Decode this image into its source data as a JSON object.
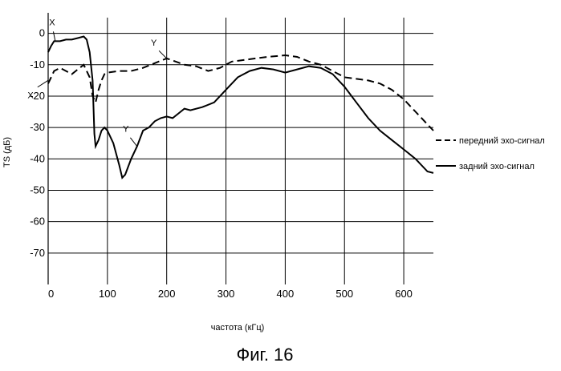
{
  "chart_data": {
    "type": "line",
    "title": "",
    "caption": "Фиг. 16",
    "xlabel": "частота (кГц)",
    "ylabel": "TS (дБ)",
    "xlim": [
      0,
      650
    ],
    "ylim": [
      -80,
      5
    ],
    "grid": true,
    "x_ticks": [
      0,
      100,
      200,
      300,
      400,
      500,
      600
    ],
    "y_ticks": [
      0,
      -10,
      -20,
      -30,
      -40,
      -50,
      -60,
      -70
    ],
    "x_tick_labels": [
      "0",
      "100",
      "200",
      "300",
      "400",
      "500",
      "600"
    ],
    "y_tick_labels": [
      "0",
      "-10",
      "-20",
      "-30",
      "-40",
      "-50",
      "-60",
      "-70"
    ],
    "legend": "right",
    "series": [
      {
        "name": "передний эхо-сигнал",
        "style": "dashed",
        "x": [
          0,
          10,
          20,
          30,
          40,
          50,
          60,
          70,
          75,
          80,
          85,
          90,
          95,
          100,
          120,
          140,
          160,
          180,
          200,
          215,
          230,
          250,
          270,
          290,
          310,
          330,
          350,
          370,
          400,
          420,
          440,
          460,
          480,
          500,
          520,
          540,
          560,
          580,
          600,
          620,
          650
        ],
        "y": [
          -16,
          -12,
          -11,
          -12,
          -13,
          -11.5,
          -10,
          -14,
          -20,
          -22,
          -18,
          -15,
          -13,
          -12.5,
          -12,
          -12,
          -11,
          -9.5,
          -8,
          -9,
          -10,
          -10.5,
          -12,
          -11,
          -9,
          -8.5,
          -8,
          -7.5,
          -7,
          -7.5,
          -9,
          -10,
          -12,
          -14,
          -14.5,
          -15,
          -16,
          -18,
          -21,
          -25,
          -31
        ]
      },
      {
        "name": "задний эхо-сигнал",
        "style": "solid",
        "x": [
          0,
          5,
          10,
          20,
          30,
          40,
          50,
          60,
          65,
          70,
          75,
          78,
          80,
          85,
          90,
          95,
          100,
          110,
          120,
          125,
          130,
          140,
          150,
          160,
          170,
          180,
          190,
          200,
          210,
          220,
          230,
          240,
          260,
          280,
          300,
          320,
          340,
          360,
          380,
          400,
          420,
          440,
          460,
          480,
          500,
          520,
          540,
          560,
          580,
          600,
          620,
          640,
          650
        ],
        "y": [
          -6,
          -4,
          -2.5,
          -2.5,
          -2,
          -2,
          -1.5,
          -1,
          -2,
          -6,
          -15,
          -32,
          -36,
          -34,
          -31,
          -30,
          -31,
          -35,
          -42,
          -46,
          -45,
          -40,
          -36,
          -31,
          -30,
          -28,
          -27,
          -26.5,
          -27,
          -25.5,
          -24,
          -24.5,
          -23.5,
          -22,
          -18,
          -14,
          -12,
          -11,
          -11.5,
          -12.5,
          -11.5,
          -10.5,
          -11,
          -13,
          -17,
          -22,
          -27,
          -31,
          -34,
          -37,
          -40,
          -44,
          -44.5
        ]
      }
    ],
    "annotations": [
      {
        "text": "X",
        "series": 1,
        "x": 12,
        "y": -2.5
      },
      {
        "text": "X",
        "series": 0,
        "x": 0,
        "y": -15
      },
      {
        "text": "Y",
        "series": 0,
        "x": 200,
        "y": -8
      },
      {
        "text": "Y",
        "series": 1,
        "x": 150,
        "y": -36
      }
    ]
  }
}
